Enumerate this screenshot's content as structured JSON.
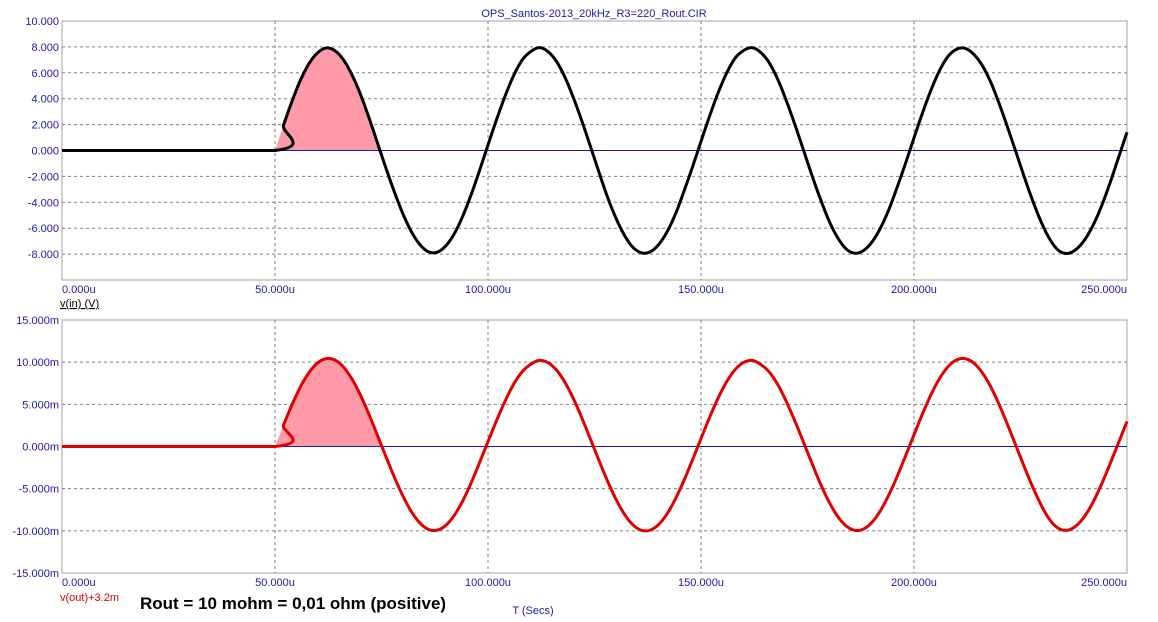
{
  "chart_data": [
    {
      "type": "line",
      "title": "OPS_Santos-2013_20kHz_R3=220_Rout.CIR",
      "trace_label": "v(in) (V)",
      "xlim": [
        0,
        250
      ],
      "ylim": [
        -10,
        10
      ],
      "x_ticks": [
        0,
        50,
        100,
        150,
        200,
        250
      ],
      "x_tick_labels": [
        "0.000u",
        "50.000u",
        "100.000u",
        "150.000u",
        "200.000u",
        "250.000u"
      ],
      "y_ticks": [
        10,
        8,
        6,
        4,
        2,
        0,
        -2,
        -4,
        -6,
        -8,
        -10
      ],
      "y_tick_labels": [
        "10.000",
        "8.000",
        "6.000",
        "4.000",
        "2.000",
        "0.000",
        "-2.000",
        "-4.000",
        "-6.000",
        "-8.000",
        ""
      ],
      "grid": true,
      "baseline": 0,
      "series": [
        {
          "color": "#000000",
          "x_unit": "us",
          "x": [
            0,
            50,
            52,
            54,
            56,
            58,
            60,
            62,
            64,
            66,
            68,
            70,
            72,
            74,
            76,
            78,
            80,
            82,
            84,
            86,
            88,
            90,
            92,
            94,
            96,
            98,
            100,
            102,
            104,
            106,
            108,
            110,
            112,
            114,
            116,
            118,
            120,
            122,
            124,
            126,
            128,
            130,
            132,
            134,
            136,
            138,
            140,
            142,
            144,
            146,
            148,
            150,
            152,
            154,
            156,
            158,
            160,
            162,
            164,
            166,
            168,
            170,
            172,
            174,
            176,
            178,
            180,
            182,
            184,
            186,
            188,
            190,
            192,
            194,
            196,
            198,
            200,
            202,
            204,
            206,
            208,
            210,
            212,
            214,
            216,
            218,
            220,
            222,
            224,
            226,
            228,
            230,
            232,
            234,
            236,
            238,
            240,
            242,
            244,
            246,
            248,
            250
          ],
          "y": [
            0,
            0,
            1.96,
            3.81,
            5.45,
            6.72,
            7.55,
            7.92,
            7.72,
            7.04,
            5.89,
            4.39,
            2.59,
            0.64,
            -1.32,
            -3.18,
            -4.87,
            -6.26,
            -7.26,
            -7.82,
            -7.86,
            -7.4,
            -6.48,
            -5.13,
            -3.45,
            -1.56,
            0.43,
            2.38,
            4.19,
            5.77,
            6.98,
            7.63,
            7.94,
            7.66,
            6.92,
            5.7,
            4.12,
            2.31,
            0.36,
            -1.63,
            -3.55,
            -5.19,
            -6.53,
            -7.47,
            -7.9,
            -7.84,
            -7.29,
            -6.3,
            -4.91,
            -3.15,
            -1.28,
            0.7,
            2.64,
            4.44,
            5.97,
            7.13,
            7.72,
            7.94,
            7.58,
            6.78,
            5.51,
            3.87,
            2.04,
            0.09,
            -1.88,
            -3.72,
            -5.39,
            -6.69,
            -7.58,
            -7.93,
            -7.76,
            -7.13,
            -6.07,
            -4.64,
            -2.88,
            -1.0,
            0.98,
            2.91,
            4.68,
            6.17,
            7.27,
            7.82,
            7.89,
            7.44,
            6.58,
            5.29,
            3.61,
            1.76,
            -0.19,
            -2.15,
            -4.0,
            -5.63,
            -6.92,
            -7.74,
            -7.95,
            -7.65,
            -6.93,
            -5.8,
            -4.31,
            -2.52,
            -0.56,
            1.41
          ]
        }
      ],
      "shaded_region": {
        "x_from": 50,
        "x_to": 75,
        "color": "#ff9aa8"
      }
    },
    {
      "type": "line",
      "trace_label": "v(out)+3.2m",
      "xlabel": "T (Secs)",
      "xlim": [
        0,
        250
      ],
      "ylim": [
        -15,
        15
      ],
      "x_ticks": [
        0,
        50,
        100,
        150,
        200,
        250
      ],
      "x_tick_labels": [
        "0.000u",
        "50.000u",
        "100.000u",
        "150.000u",
        "200.000u",
        "250.000u"
      ],
      "y_ticks": [
        15,
        10,
        5,
        0,
        -5,
        -10,
        -15
      ],
      "y_tick_labels": [
        "15.000m",
        "10.000m",
        "5.000m",
        "0.000m",
        "-5.000m",
        "-10.000m",
        "-15.000m"
      ],
      "grid": true,
      "baseline": 0,
      "series": [
        {
          "color": "#e00000",
          "x_unit": "us",
          "x": [
            0,
            50,
            52,
            54,
            56,
            58,
            60,
            62,
            64,
            66,
            68,
            70,
            72,
            74,
            76,
            78,
            80,
            82,
            84,
            86,
            88,
            90,
            92,
            94,
            96,
            98,
            100,
            102,
            104,
            106,
            108,
            110,
            112,
            114,
            116,
            118,
            120,
            122,
            124,
            126,
            128,
            130,
            132,
            134,
            136,
            138,
            140,
            142,
            144,
            146,
            148,
            150,
            152,
            154,
            156,
            158,
            160,
            162,
            164,
            166,
            168,
            170,
            172,
            174,
            176,
            178,
            180,
            182,
            184,
            186,
            188,
            190,
            192,
            194,
            196,
            198,
            200,
            202,
            204,
            206,
            208,
            210,
            212,
            214,
            216,
            218,
            220,
            222,
            224,
            226,
            228,
            230,
            232,
            234,
            236,
            238,
            240,
            242,
            244,
            246,
            248,
            250
          ],
          "y": [
            0,
            0,
            2.54,
            4.96,
            7.1,
            8.78,
            9.91,
            10.42,
            10.27,
            9.47,
            8.06,
            6.16,
            3.88,
            1.39,
            -1.15,
            -3.61,
            -5.84,
            -7.71,
            -9.06,
            -9.82,
            -9.93,
            -9.39,
            -8.23,
            -6.51,
            -4.37,
            -1.94,
            0.58,
            3.07,
            5.37,
            7.36,
            8.85,
            9.74,
            10.21,
            9.97,
            9.11,
            7.66,
            5.73,
            3.43,
            0.94,
            -1.59,
            -4.03,
            -6.21,
            -8.01,
            -9.28,
            -9.93,
            -9.93,
            -9.28,
            -8.01,
            -6.21,
            -4.03,
            -1.59,
            0.94,
            3.43,
            5.73,
            7.66,
            9.11,
            9.97,
            10.21,
            9.74,
            8.85,
            7.36,
            5.37,
            3.07,
            0.58,
            -1.94,
            -4.37,
            -6.51,
            -8.23,
            -9.39,
            -9.93,
            -9.82,
            -9.06,
            -7.71,
            -5.84,
            -3.61,
            -1.15,
            1.39,
            3.88,
            6.16,
            8.06,
            9.47,
            10.27,
            10.42,
            9.91,
            8.78,
            7.1,
            4.96,
            2.54,
            0.0,
            -2.54,
            -4.96,
            -7.1,
            -8.78,
            -9.73,
            -9.93,
            -9.43,
            -8.31,
            -6.64,
            -4.51,
            -2.09,
            0.43,
            2.97
          ]
        }
      ],
      "shaded_region": {
        "x_from": 50,
        "x_to": 75,
        "color": "#ff9aa8"
      }
    }
  ],
  "annotation": "Rout = 10 mohm = 0,01 ohm (positive)",
  "colors": {
    "tick_text": "#1a1aa6",
    "grid": "#808080",
    "baseline": "#1a1aa6",
    "frame": "#a0a0a0",
    "trace_in": "#000000",
    "trace_out": "#e00000",
    "fill": "#ff9aa8"
  }
}
